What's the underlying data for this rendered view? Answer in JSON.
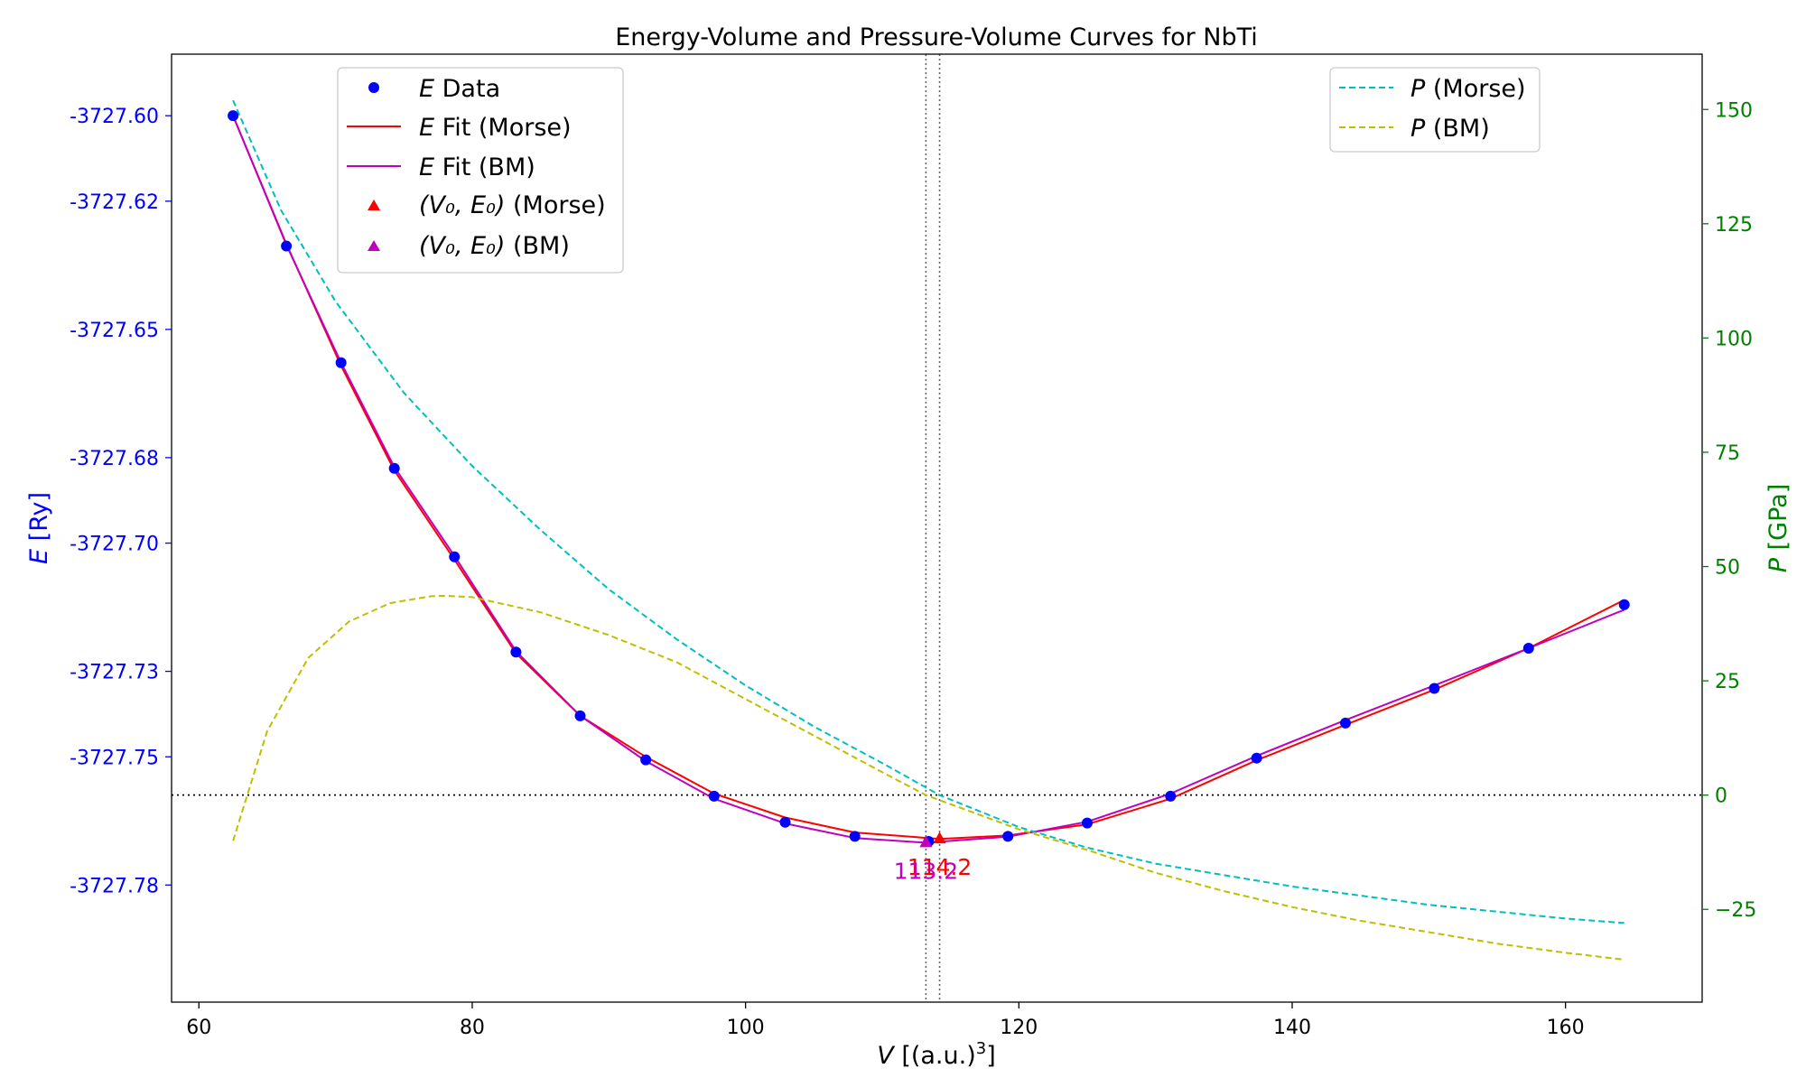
{
  "chart_data": {
    "type": "line",
    "title": "Energy-Volume and Pressure-Volume Curves for NbTi",
    "xlabel": "V [(a.u.)³]",
    "xlabel_var": "V",
    "xlabel_unit": " [(a.u.)",
    "xlabel_sup": "3",
    "xlabel_close": "]",
    "ylabel_left": "E [Ry]",
    "ylabel_left_var": "E",
    "ylabel_left_unit": " [Ry]",
    "ylabel_right": "P [GPa]",
    "ylabel_right_var": "P",
    "ylabel_right_unit": " [GPa]",
    "xlim": [
      58,
      170
    ],
    "ylim_left": [
      -3727.8074,
      -3727.5856
    ],
    "ylim_right": [
      -45.3,
      162.1
    ],
    "x_ticks": [
      60,
      80,
      100,
      120,
      140,
      160
    ],
    "y_left_ticks": [
      -3727.6,
      -3727.62,
      -3727.65,
      -3727.68,
      -3727.7,
      -3727.73,
      -3727.75,
      -3727.78
    ],
    "y_left_tick_labels": [
      "-3727.60",
      "-3727.62",
      "-3727.65",
      "-3727.68",
      "-3727.70",
      "-3727.73",
      "-3727.75",
      "-3727.78"
    ],
    "y_right_ticks": [
      -25,
      0,
      25,
      50,
      75,
      100,
      125,
      150
    ],
    "colors": {
      "e_data": "#0000ff",
      "e_fit_morse": "#ff0000",
      "e_fit_bm": "#bf00bf",
      "v0_morse": "#ff0000",
      "v0_bm": "#bf00bf",
      "p_morse": "#00bfbf",
      "p_bm": "#bfbf00",
      "left_axis": "#0000ff",
      "right_axis": "#008000"
    },
    "series": [
      {
        "name": "E Data",
        "axis": "left",
        "style": "markers",
        "x": [
          62.5,
          66.4,
          70.4,
          74.3,
          78.7,
          83.2,
          87.9,
          92.7,
          97.7,
          102.9,
          108.0,
          113.4,
          119.2,
          125.0,
          131.1,
          137.4,
          143.9,
          150.4,
          157.3,
          164.3
        ],
        "y": [
          -3727.6,
          -3727.6305,
          -3727.6578,
          -3727.6825,
          -3727.7032,
          -3727.7255,
          -3727.7404,
          -3727.7507,
          -3727.7592,
          -3727.7653,
          -3727.7686,
          -3727.7698,
          -3727.7686,
          -3727.7655,
          -3727.7592,
          -3727.7503,
          -3727.7421,
          -3727.734,
          -3727.7246,
          -3727.7144
        ]
      },
      {
        "name": "E Fit (Morse)",
        "axis": "left",
        "style": "solid",
        "x": [
          62.5,
          66.4,
          70.4,
          74.3,
          78.7,
          83.2,
          87.9,
          92.7,
          97.7,
          102.9,
          108.0,
          114.2,
          119.2,
          125.0,
          131.1,
          137.4,
          143.9,
          150.4,
          157.3,
          164.3
        ],
        "y": [
          -3727.6,
          -3727.63,
          -3727.6585,
          -3727.683,
          -3727.7039,
          -3727.7258,
          -3727.7404,
          -3727.75,
          -3727.7586,
          -3727.7642,
          -3727.7677,
          -3727.7692,
          -3727.7684,
          -3727.7658,
          -3727.7598,
          -3727.7508,
          -3727.7425,
          -3727.7343,
          -3727.7246,
          -3727.7133
        ]
      },
      {
        "name": "E Fit (BM)",
        "axis": "left",
        "style": "solid",
        "x": [
          62.5,
          66.4,
          70.4,
          74.3,
          78.7,
          83.2,
          87.9,
          92.7,
          97.7,
          102.9,
          108.0,
          113.2,
          119.2,
          125.0,
          131.1,
          137.4,
          143.9,
          150.4,
          157.3,
          164.3
        ],
        "y": [
          -3727.6,
          -3727.6302,
          -3727.6578,
          -3727.6822,
          -3727.703,
          -3727.7253,
          -3727.7404,
          -3727.751,
          -3727.7598,
          -3727.7656,
          -3727.769,
          -3727.7701,
          -3727.7687,
          -3727.7652,
          -3727.7586,
          -3727.7498,
          -3727.7414,
          -3727.7333,
          -3727.7246,
          -3727.7156
        ]
      },
      {
        "name": "(V₀, E₀) (Morse)",
        "axis": "left",
        "style": "triangle",
        "x": [
          114.2
        ],
        "y": [
          -3727.7692
        ],
        "annotation": "114.2"
      },
      {
        "name": "(V₀, E₀) (BM)",
        "axis": "left",
        "style": "triangle",
        "x": [
          113.2
        ],
        "y": [
          -3727.7701
        ],
        "annotation": "113.2"
      },
      {
        "name": "P (Morse)",
        "axis": "right",
        "style": "dashed",
        "x": [
          62.5,
          66.0,
          70.0,
          75.0,
          80.0,
          85.0,
          90.0,
          95.0,
          100.0,
          105.0,
          110.0,
          114.2,
          120.0,
          125.0,
          130.0,
          135.0,
          140.0,
          145.0,
          150.0,
          155.0,
          160.0,
          164.3
        ],
        "y": [
          152,
          128,
          108,
          88,
          72,
          58,
          45,
          34,
          24,
          15,
          7,
          0,
          -7,
          -11.5,
          -15,
          -17.5,
          -20,
          -22,
          -24,
          -25.5,
          -27,
          -28
        ]
      },
      {
        "name": "P (BM)",
        "axis": "right",
        "style": "dashed",
        "x": [
          62.5,
          65.0,
          68.0,
          71.0,
          74.0,
          77.0,
          78.0,
          80.0,
          85.0,
          90.0,
          95.0,
          100.0,
          105.0,
          110.0,
          113.2,
          120.0,
          125.0,
          130.0,
          135.0,
          140.0,
          145.0,
          150.0,
          155.0,
          160.0,
          164.3
        ],
        "y": [
          -10,
          14,
          30,
          38,
          42,
          43.5,
          43.6,
          43.3,
          40,
          35,
          29,
          21,
          13,
          5,
          0,
          -7.5,
          -12,
          -17,
          -21,
          -24.5,
          -27.5,
          -30,
          -32.5,
          -34.5,
          -36
        ]
      }
    ],
    "reference_lines": {
      "horizontal_right_axis": 0,
      "vertical_x": [
        113.2,
        114.2
      ]
    },
    "legend_left": {
      "position": "upper-left",
      "entries": [
        {
          "var": "E",
          "text": " Data"
        },
        {
          "var": "E",
          "text": " Fit (Morse)"
        },
        {
          "var": "E",
          "text": " Fit (BM)"
        },
        {
          "var": "(V₀, E₀)",
          "text": " (Morse)"
        },
        {
          "var": "(V₀, E₀)",
          "text": " (BM)"
        }
      ]
    },
    "legend_right": {
      "position": "upper-right",
      "entries": [
        {
          "var": "P",
          "text": " (Morse)"
        },
        {
          "var": "P",
          "text": " (BM)"
        }
      ]
    },
    "grid": false
  }
}
